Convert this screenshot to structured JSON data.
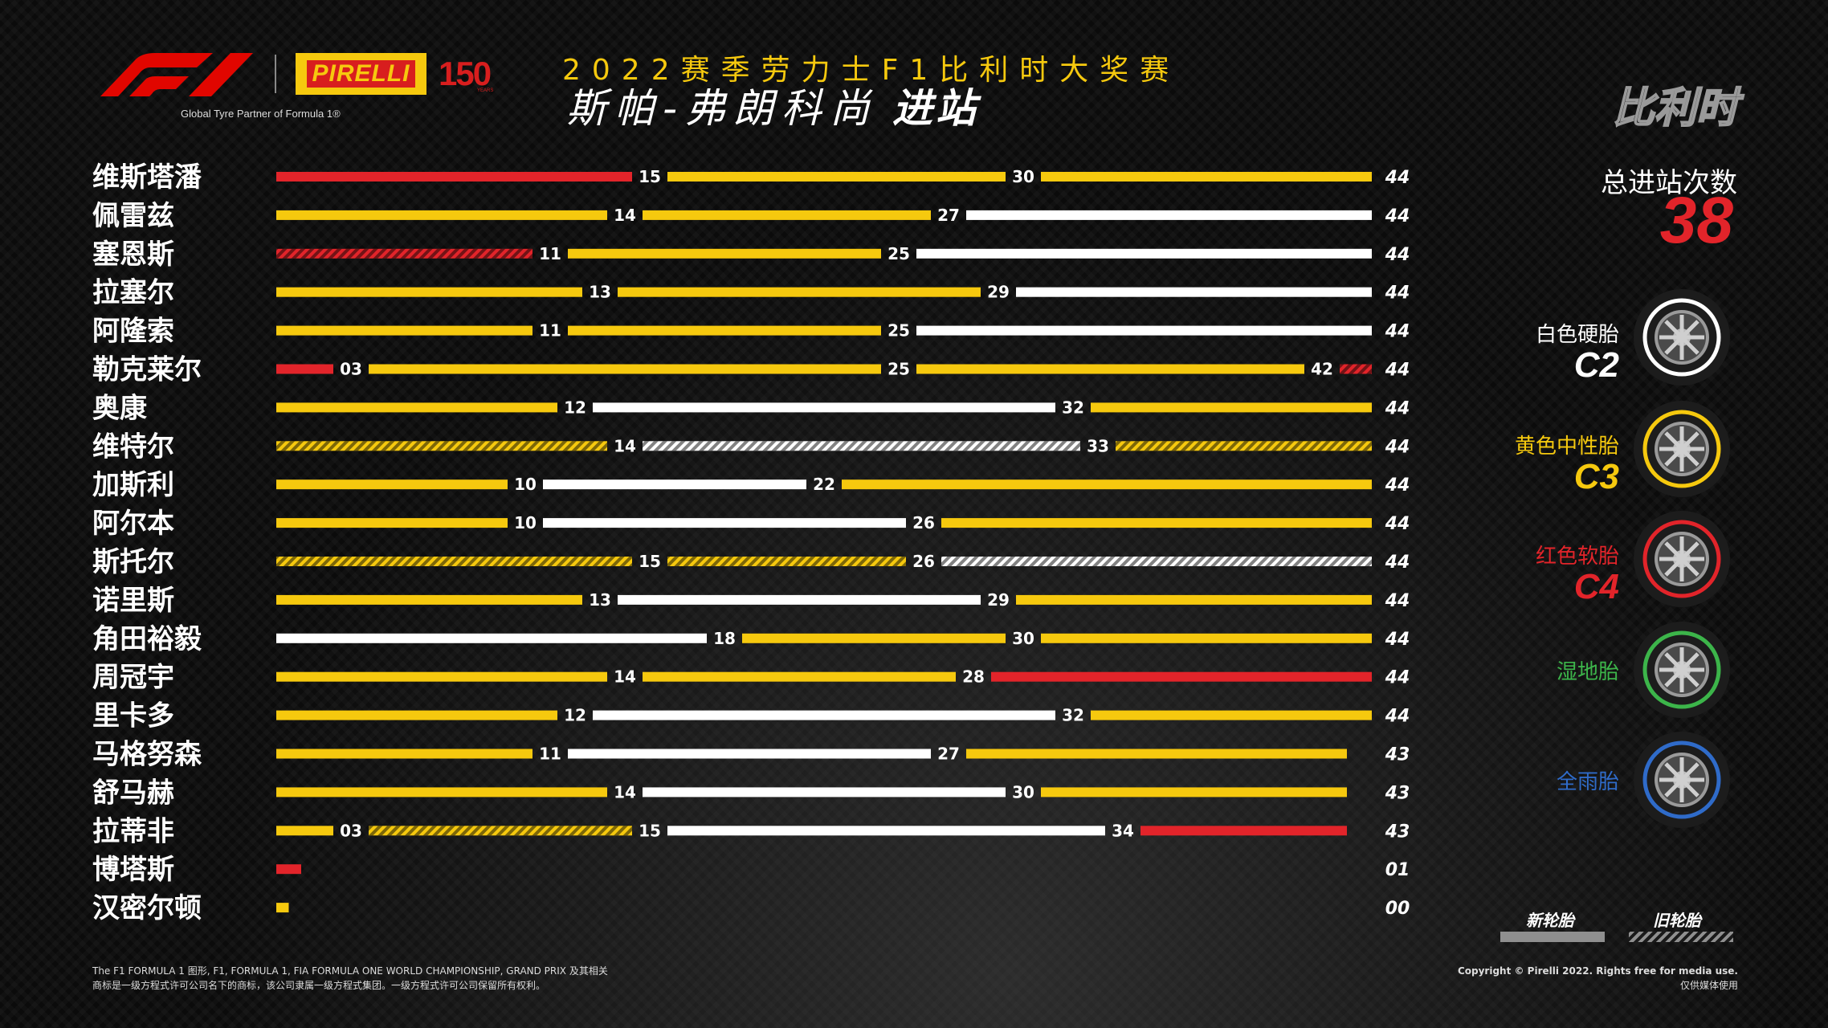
{
  "header": {
    "tagline": "Global Tyre Partner of Formula 1®",
    "brand": "PIRELLI",
    "anniversary": "150",
    "anniversary_sub": "YEARS",
    "season_title": "2022赛季劳力士F1比利时大奖赛",
    "race_title": "斯帕-弗朗科尚",
    "race_title_bold": "进站",
    "country": "比利时"
  },
  "total_stops": {
    "label": "总进站次数",
    "value": "38"
  },
  "colors": {
    "hard": "#ffffff",
    "medium": "#f6c90e",
    "soft": "#e2242a",
    "intermediate": "#3cb54a",
    "wet": "#2f6bc9",
    "background": "#0b0b0b"
  },
  "tyres": [
    {
      "name": "白色硬胎",
      "code": "C2",
      "color": "#ffffff"
    },
    {
      "name": "黄色中性胎",
      "code": "C3",
      "color": "#f6c90e"
    },
    {
      "name": "红色软胎",
      "code": "C4",
      "color": "#e2242a"
    },
    {
      "name": "湿地胎",
      "code": "",
      "color": "#3cb54a"
    },
    {
      "name": "全雨胎",
      "code": "",
      "color": "#2f6bc9"
    }
  ],
  "legend": {
    "new": "新轮胎",
    "used": "旧轮胎"
  },
  "footer": {
    "left_line1": "The F1 FORMULA 1 图形, F1, FORMULA 1, FIA FORMULA ONE WORLD CHAMPIONSHIP, GRAND PRIX 及其相关",
    "left_line2": "商标是一级方程式许可公司名下的商标，该公司隶属一级方程式集团。一级方程式许可公司保留所有权利。",
    "right_line1": "Copyright © Pirelli 2022. Rights free for media use.",
    "right_line2": "仅供媒体使用"
  },
  "chart_data": {
    "type": "bar",
    "xlim": [
      0,
      44
    ],
    "drivers": [
      {
        "name": "维斯塔潘",
        "laps": "44",
        "stints": [
          {
            "compound": "soft",
            "end": 15,
            "label": "15",
            "used": false
          },
          {
            "compound": "medium",
            "end": 30,
            "label": "30",
            "used": false
          },
          {
            "compound": "medium",
            "end": 44,
            "used": false
          }
        ]
      },
      {
        "name": "佩雷兹",
        "laps": "44",
        "stints": [
          {
            "compound": "medium",
            "end": 14,
            "label": "14",
            "used": false
          },
          {
            "compound": "medium",
            "end": 27,
            "label": "27",
            "used": false
          },
          {
            "compound": "hard",
            "end": 44,
            "used": false
          }
        ]
      },
      {
        "name": "塞恩斯",
        "laps": "44",
        "stints": [
          {
            "compound": "soft",
            "end": 11,
            "label": "11",
            "used": true
          },
          {
            "compound": "medium",
            "end": 25,
            "label": "25",
            "used": false
          },
          {
            "compound": "hard",
            "end": 44,
            "used": false
          }
        ]
      },
      {
        "name": "拉塞尔",
        "laps": "44",
        "stints": [
          {
            "compound": "medium",
            "end": 13,
            "label": "13",
            "used": false
          },
          {
            "compound": "medium",
            "end": 29,
            "label": "29",
            "used": false
          },
          {
            "compound": "hard",
            "end": 44,
            "used": false
          }
        ]
      },
      {
        "name": "阿隆索",
        "laps": "44",
        "stints": [
          {
            "compound": "medium",
            "end": 11,
            "label": "11",
            "used": false
          },
          {
            "compound": "medium",
            "end": 25,
            "label": "25",
            "used": false
          },
          {
            "compound": "hard",
            "end": 44,
            "used": false
          }
        ]
      },
      {
        "name": "勒克莱尔",
        "laps": "44",
        "stints": [
          {
            "compound": "soft",
            "end": 3,
            "label": "03",
            "used": false
          },
          {
            "compound": "medium",
            "end": 25,
            "label": "25",
            "used": false
          },
          {
            "compound": "medium",
            "end": 42,
            "label": "42",
            "used": false
          },
          {
            "compound": "soft",
            "end": 44,
            "used": true
          }
        ]
      },
      {
        "name": "奥康",
        "laps": "44",
        "stints": [
          {
            "compound": "medium",
            "end": 12,
            "label": "12",
            "used": false
          },
          {
            "compound": "hard",
            "end": 32,
            "label": "32",
            "used": false
          },
          {
            "compound": "medium",
            "end": 44,
            "used": false
          }
        ]
      },
      {
        "name": "维特尔",
        "laps": "44",
        "stints": [
          {
            "compound": "medium",
            "end": 14,
            "label": "14",
            "used": true
          },
          {
            "compound": "hard",
            "end": 33,
            "label": "33",
            "used": true
          },
          {
            "compound": "medium",
            "end": 44,
            "used": true
          }
        ]
      },
      {
        "name": "加斯利",
        "laps": "44",
        "stints": [
          {
            "compound": "medium",
            "end": 10,
            "label": "10",
            "used": false
          },
          {
            "compound": "hard",
            "end": 22,
            "label": "22",
            "used": false
          },
          {
            "compound": "medium",
            "end": 44,
            "used": false
          }
        ]
      },
      {
        "name": "阿尔本",
        "laps": "44",
        "stints": [
          {
            "compound": "medium",
            "end": 10,
            "label": "10",
            "used": false
          },
          {
            "compound": "hard",
            "end": 26,
            "label": "26",
            "used": false
          },
          {
            "compound": "medium",
            "end": 44,
            "used": false
          }
        ]
      },
      {
        "name": "斯托尔",
        "laps": "44",
        "stints": [
          {
            "compound": "medium",
            "end": 15,
            "label": "15",
            "used": true
          },
          {
            "compound": "medium",
            "end": 26,
            "label": "26",
            "used": true
          },
          {
            "compound": "hard",
            "end": 44,
            "used": true
          }
        ]
      },
      {
        "name": "诺里斯",
        "laps": "44",
        "stints": [
          {
            "compound": "medium",
            "end": 13,
            "label": "13",
            "used": false
          },
          {
            "compound": "hard",
            "end": 29,
            "label": "29",
            "used": false
          },
          {
            "compound": "medium",
            "end": 44,
            "used": false
          }
        ]
      },
      {
        "name": "角田裕毅",
        "laps": "44",
        "stints": [
          {
            "compound": "hard",
            "end": 18,
            "label": "18",
            "used": false
          },
          {
            "compound": "medium",
            "end": 30,
            "label": "30",
            "used": false
          },
          {
            "compound": "medium",
            "end": 44,
            "used": false
          }
        ]
      },
      {
        "name": "周冠宇",
        "laps": "44",
        "stints": [
          {
            "compound": "medium",
            "end": 14,
            "label": "14",
            "used": false
          },
          {
            "compound": "medium",
            "end": 28,
            "label": "28",
            "used": false
          },
          {
            "compound": "soft",
            "end": 44,
            "used": false
          }
        ]
      },
      {
        "name": "里卡多",
        "laps": "44",
        "stints": [
          {
            "compound": "medium",
            "end": 12,
            "label": "12",
            "used": false
          },
          {
            "compound": "hard",
            "end": 32,
            "label": "32",
            "used": false
          },
          {
            "compound": "medium",
            "end": 44,
            "used": false
          }
        ]
      },
      {
        "name": "马格努森",
        "laps": "43",
        "stints": [
          {
            "compound": "medium",
            "end": 11,
            "label": "11",
            "used": false
          },
          {
            "compound": "hard",
            "end": 27,
            "label": "27",
            "used": false
          },
          {
            "compound": "medium",
            "end": 43,
            "used": false
          }
        ]
      },
      {
        "name": "舒马赫",
        "laps": "43",
        "stints": [
          {
            "compound": "medium",
            "end": 14,
            "label": "14",
            "used": false
          },
          {
            "compound": "hard",
            "end": 30,
            "label": "30",
            "used": false
          },
          {
            "compound": "medium",
            "end": 43,
            "used": false
          }
        ]
      },
      {
        "name": "拉蒂非",
        "laps": "43",
        "stints": [
          {
            "compound": "medium",
            "end": 3,
            "label": "03",
            "used": false
          },
          {
            "compound": "medium",
            "end": 15,
            "label": "15",
            "used": true
          },
          {
            "compound": "hard",
            "end": 34,
            "label": "34",
            "used": false
          },
          {
            "compound": "soft",
            "end": 43,
            "used": false
          }
        ]
      },
      {
        "name": "博塔斯",
        "laps": "01",
        "stints": [
          {
            "compound": "soft",
            "end": 1,
            "used": false
          }
        ]
      },
      {
        "name": "汉密尔顿",
        "laps": "00",
        "stints": [
          {
            "compound": "medium",
            "end": 0.5,
            "used": false
          }
        ]
      }
    ]
  }
}
